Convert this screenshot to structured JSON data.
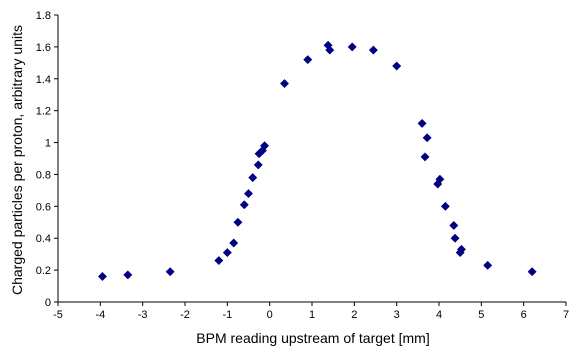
{
  "chart_data": {
    "type": "scatter",
    "title": "",
    "xlabel": "BPM reading upstream of target [mm]",
    "ylabel": "Charged particles per proton, arbitrary units",
    "xlim": [
      -5,
      7
    ],
    "ylim": [
      0,
      1.8
    ],
    "x_ticks": [
      "-5",
      "-4",
      "-3",
      "-2",
      "-1",
      "0",
      "1",
      "2",
      "3",
      "4",
      "5",
      "6",
      "7"
    ],
    "y_ticks": [
      "0",
      "0.2",
      "0.4",
      "0.6",
      "0.8",
      "1",
      "1.2",
      "1.4",
      "1.6",
      "1.8"
    ],
    "grid": false,
    "legend": "none",
    "marker": "diamond",
    "marker_color": "#000080",
    "series": [
      {
        "points": [
          [
            -3.95,
            0.16
          ],
          [
            -3.35,
            0.17
          ],
          [
            -2.35,
            0.19
          ],
          [
            -1.2,
            0.26
          ],
          [
            -1.0,
            0.31
          ],
          [
            -0.85,
            0.37
          ],
          [
            -0.75,
            0.5
          ],
          [
            -0.6,
            0.61
          ],
          [
            -0.5,
            0.68
          ],
          [
            -0.4,
            0.78
          ],
          [
            -0.27,
            0.86
          ],
          [
            -0.25,
            0.93
          ],
          [
            -0.17,
            0.95
          ],
          [
            -0.12,
            0.98
          ],
          [
            0.35,
            1.37
          ],
          [
            0.9,
            1.52
          ],
          [
            1.38,
            1.61
          ],
          [
            1.42,
            1.58
          ],
          [
            1.95,
            1.6
          ],
          [
            2.45,
            1.58
          ],
          [
            3.0,
            1.48
          ],
          [
            3.6,
            1.12
          ],
          [
            3.67,
            0.91
          ],
          [
            3.72,
            1.03
          ],
          [
            3.97,
            0.74
          ],
          [
            4.02,
            0.77
          ],
          [
            4.15,
            0.6
          ],
          [
            4.35,
            0.48
          ],
          [
            4.38,
            0.4
          ],
          [
            4.5,
            0.31
          ],
          [
            4.53,
            0.33
          ],
          [
            5.15,
            0.23
          ],
          [
            6.2,
            0.19
          ]
        ]
      }
    ]
  }
}
